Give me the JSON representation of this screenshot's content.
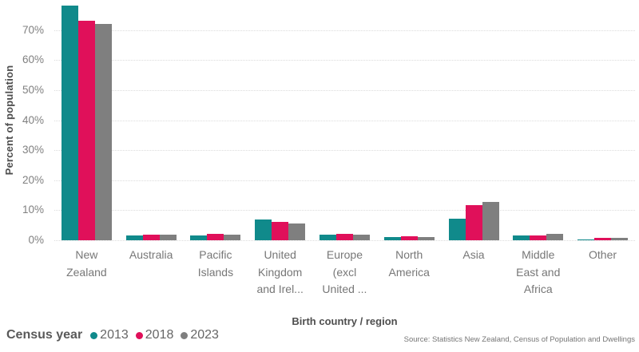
{
  "chart_data": {
    "type": "bar",
    "title": "",
    "xlabel": "Birth country / region",
    "ylabel": "Percent of population",
    "ylim": [
      0,
      80
    ],
    "y_ticks": [
      "0%",
      "10%",
      "20%",
      "30%",
      "40%",
      "50%",
      "60%",
      "70%"
    ],
    "y_tick_values": [
      0,
      10,
      20,
      30,
      40,
      50,
      60,
      70
    ],
    "grid": "horizontal-dotted",
    "legend_title": "Census year",
    "legend_position": "bottom-left",
    "categories": [
      "New Zealand",
      "Australia",
      "Pacific Islands",
      "United Kingdom and Irel...",
      "Europe (excl United ...",
      "North America",
      "Asia",
      "Middle East and Africa",
      "Other"
    ],
    "category_display_lines": [
      [
        "New",
        "Zealand"
      ],
      [
        "Australia"
      ],
      [
        "Pacific",
        "Islands"
      ],
      [
        "United",
        "Kingdom",
        "and Irel..."
      ],
      [
        "Europe",
        "(excl",
        "United ..."
      ],
      [
        "North",
        "America"
      ],
      [
        "Asia"
      ],
      [
        "Middle",
        "East and",
        "Africa"
      ],
      [
        "Other"
      ]
    ],
    "series": [
      {
        "name": "2013",
        "color": "#108a8b",
        "values": [
          78.2,
          1.7,
          1.6,
          7.0,
          1.9,
          1.1,
          7.2,
          1.5,
          0.3
        ]
      },
      {
        "name": "2018",
        "color": "#e0105a",
        "values": [
          73.2,
          1.9,
          2.1,
          6.2,
          2.2,
          1.3,
          11.6,
          1.7,
          0.7
        ]
      },
      {
        "name": "2023",
        "color": "#7f7f7f",
        "values": [
          72.0,
          1.9,
          1.9,
          5.5,
          1.9,
          1.2,
          12.7,
          2.0,
          0.7
        ]
      }
    ]
  },
  "source": "Source: Statistics New Zealand, Census of Population and Dwellings",
  "style_colors": {
    "gridline": "#dcdcdc",
    "axis_text": "#777777",
    "axis_title_text": "#4e4e4e",
    "legend_text": "#666666"
  }
}
